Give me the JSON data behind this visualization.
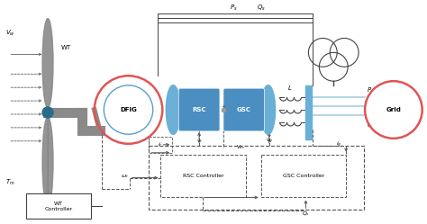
{
  "fig_width": 4.74,
  "fig_height": 2.49,
  "dpi": 100,
  "bg_color": "#ffffff",
  "blue_color": "#4A8EC2",
  "blue_lens": "#6AAFD6",
  "blue_light": "#A8CEE2",
  "red_color": "#E05555",
  "gray_shaft": "#8A8A8A",
  "dark": "#444444",
  "dashed": "#555555",
  "labels": {
    "WT": "WT",
    "DFIG": "DFIG",
    "RSC": "RSC",
    "GSC": "GSC",
    "L": "L",
    "Grid": "Grid",
    "RSC_Controller": "RSC Controller",
    "GSC_Controller": "GSC Controller",
    "WT_Controller": "WT\nController"
  }
}
